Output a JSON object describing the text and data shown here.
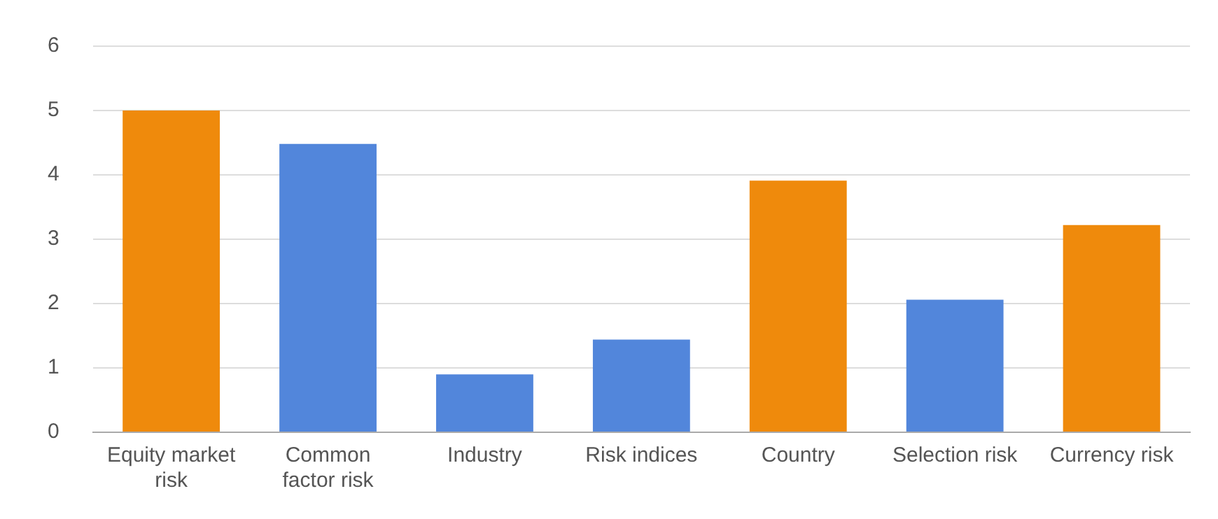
{
  "chart_data": {
    "type": "bar",
    "categories": [
      "Equity market risk",
      "Common factor risk",
      "Industry",
      "Risk indices",
      "Country",
      "Selection risk",
      "Currency risk"
    ],
    "values": [
      5.0,
      4.48,
      0.9,
      1.44,
      3.91,
      2.06,
      3.22
    ],
    "colors": [
      "#ef8a0c",
      "#5286db",
      "#5286db",
      "#5286db",
      "#ef8a0c",
      "#5286db",
      "#ef8a0c"
    ],
    "ylim": [
      0,
      6
    ],
    "yticks": [
      0,
      1,
      2,
      3,
      4,
      5,
      6
    ],
    "grid": "y",
    "legend": false
  }
}
